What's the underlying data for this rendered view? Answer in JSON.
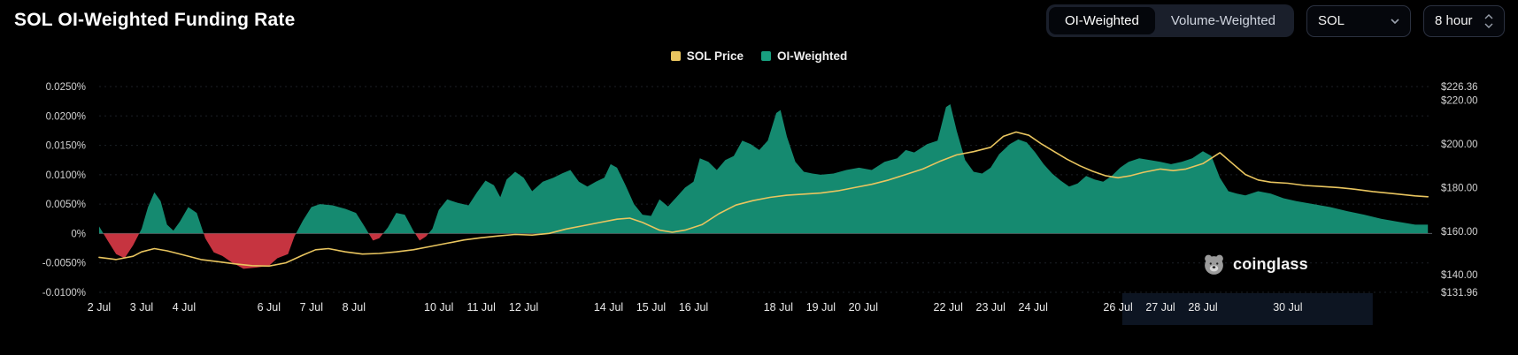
{
  "header": {
    "title": "SOL OI-Weighted Funding Rate",
    "toggle_options": [
      "OI-Weighted",
      "Volume-Weighted"
    ],
    "active_toggle": "OI-Weighted",
    "symbol": "SOL",
    "interval": "8 hour"
  },
  "watermark": {
    "label": "coinglass"
  },
  "chart_data": {
    "type": "area",
    "title": "SOL OI-Weighted Funding Rate",
    "legend": [
      {
        "label": "SOL Price",
        "color": "#e9c55f"
      },
      {
        "label": "OI-Weighted",
        "color": "#18a07f"
      }
    ],
    "x_axis": {
      "min_day": 0,
      "max_day": 31.4,
      "tick_days": [
        0,
        1,
        2,
        4,
        5,
        6,
        8,
        9,
        10,
        12,
        13,
        14,
        16,
        17,
        18,
        20,
        21,
        22,
        24,
        25,
        26,
        28
      ],
      "tick_labels": [
        "2 Jul",
        "3 Jul",
        "4 Jul",
        "6 Jul",
        "7 Jul",
        "8 Jul",
        "10 Jul",
        "11 Jul",
        "12 Jul",
        "14 Jul",
        "15 Jul",
        "16 Jul",
        "18 Jul",
        "19 Jul",
        "20 Jul",
        "22 Jul",
        "23 Jul",
        "24 Jul",
        "26 Jul",
        "27 Jul",
        "28 Jul",
        "30 Jul"
      ]
    },
    "left_axis": {
      "min": -0.01,
      "max": 0.025,
      "tick_values": [
        0.025,
        0.02,
        0.015,
        0.01,
        0.005,
        0,
        -0.005,
        -0.01
      ],
      "tick_labels": [
        "0.0250%",
        "0.0200%",
        "0.0150%",
        "0.0100%",
        "0.0050%",
        "0%",
        "-0.0050%",
        "-0.0100%"
      ]
    },
    "right_axis": {
      "min": 131.96,
      "max": 226.36,
      "tick_values": [
        226.36,
        220,
        200,
        180,
        160,
        140,
        131.96
      ],
      "tick_labels": [
        "$226.36",
        "$220.00",
        "$200.00",
        "$180.00",
        "$160.00",
        "$140.00",
        "$131.96"
      ]
    },
    "highlight_band": {
      "from_day": 24.1,
      "to_day": 30.0,
      "color": "#0d1522"
    },
    "grid": {
      "line_color": "#1c2026",
      "zero_line_color": "#565b63"
    },
    "series": [
      {
        "name": "OI-Weighted",
        "kind": "area",
        "axis": "left",
        "unit": "%",
        "positive_color": "#158a70",
        "negative_color": "#c63440",
        "points": [
          [
            0,
            0.0012
          ],
          [
            0.2,
            -0.0012
          ],
          [
            0.4,
            -0.0035
          ],
          [
            0.6,
            -0.0042
          ],
          [
            0.8,
            -0.002
          ],
          [
            1,
            0.0008
          ],
          [
            1.15,
            0.0045
          ],
          [
            1.3,
            0.007
          ],
          [
            1.45,
            0.0055
          ],
          [
            1.6,
            0.0015
          ],
          [
            1.75,
            0.0005
          ],
          [
            1.9,
            0.002
          ],
          [
            2.1,
            0.0045
          ],
          [
            2.3,
            0.0035
          ],
          [
            2.5,
            -0.0008
          ],
          [
            2.7,
            -0.0032
          ],
          [
            2.9,
            -0.0038
          ],
          [
            3.1,
            -0.0048
          ],
          [
            3.4,
            -0.006
          ],
          [
            3.7,
            -0.0058
          ],
          [
            4,
            -0.0055
          ],
          [
            4.2,
            -0.0042
          ],
          [
            4.45,
            -0.0035
          ],
          [
            4.6,
            -0.0005
          ],
          [
            4.8,
            0.0022
          ],
          [
            5,
            0.0045
          ],
          [
            5.2,
            0.005
          ],
          [
            5.5,
            0.0048
          ],
          [
            5.8,
            0.0042
          ],
          [
            6.05,
            0.0035
          ],
          [
            6.25,
            0.0012
          ],
          [
            6.45,
            -0.0012
          ],
          [
            6.6,
            -0.0008
          ],
          [
            6.8,
            0.001
          ],
          [
            7,
            0.0035
          ],
          [
            7.2,
            0.0032
          ],
          [
            7.4,
            0.0005
          ],
          [
            7.55,
            -0.0012
          ],
          [
            7.7,
            -0.0005
          ],
          [
            7.85,
            0.0008
          ],
          [
            8,
            0.004
          ],
          [
            8.2,
            0.0058
          ],
          [
            8.45,
            0.0052
          ],
          [
            8.7,
            0.0048
          ],
          [
            8.9,
            0.007
          ],
          [
            9.1,
            0.009
          ],
          [
            9.3,
            0.0082
          ],
          [
            9.45,
            0.0062
          ],
          [
            9.6,
            0.0092
          ],
          [
            9.8,
            0.0105
          ],
          [
            10,
            0.0095
          ],
          [
            10.2,
            0.0072
          ],
          [
            10.45,
            0.0088
          ],
          [
            10.7,
            0.0095
          ],
          [
            10.9,
            0.0102
          ],
          [
            11.1,
            0.0108
          ],
          [
            11.3,
            0.0088
          ],
          [
            11.5,
            0.008
          ],
          [
            11.7,
            0.0088
          ],
          [
            11.9,
            0.0095
          ],
          [
            12.05,
            0.0118
          ],
          [
            12.2,
            0.0112
          ],
          [
            12.4,
            0.0082
          ],
          [
            12.6,
            0.005
          ],
          [
            12.8,
            0.0032
          ],
          [
            13,
            0.003
          ],
          [
            13.2,
            0.0058
          ],
          [
            13.4,
            0.0046
          ],
          [
            13.6,
            0.0062
          ],
          [
            13.8,
            0.0078
          ],
          [
            14,
            0.0088
          ],
          [
            14.15,
            0.0128
          ],
          [
            14.35,
            0.0122
          ],
          [
            14.55,
            0.0108
          ],
          [
            14.75,
            0.0125
          ],
          [
            14.95,
            0.0132
          ],
          [
            15.15,
            0.0158
          ],
          [
            15.35,
            0.0152
          ],
          [
            15.55,
            0.0142
          ],
          [
            15.75,
            0.0158
          ],
          [
            15.95,
            0.0205
          ],
          [
            16.05,
            0.021
          ],
          [
            16.2,
            0.0165
          ],
          [
            16.4,
            0.0122
          ],
          [
            16.6,
            0.0105
          ],
          [
            16.8,
            0.0102
          ],
          [
            17,
            0.01
          ],
          [
            17.3,
            0.0102
          ],
          [
            17.6,
            0.0108
          ],
          [
            17.9,
            0.0112
          ],
          [
            18.2,
            0.0108
          ],
          [
            18.5,
            0.0122
          ],
          [
            18.8,
            0.0128
          ],
          [
            19,
            0.0142
          ],
          [
            19.2,
            0.0138
          ],
          [
            19.5,
            0.0152
          ],
          [
            19.75,
            0.0158
          ],
          [
            19.95,
            0.0215
          ],
          [
            20.05,
            0.022
          ],
          [
            20.2,
            0.0175
          ],
          [
            20.4,
            0.0125
          ],
          [
            20.6,
            0.0105
          ],
          [
            20.8,
            0.0102
          ],
          [
            21,
            0.0112
          ],
          [
            21.2,
            0.0135
          ],
          [
            21.45,
            0.0152
          ],
          [
            21.65,
            0.016
          ],
          [
            21.85,
            0.0155
          ],
          [
            22.05,
            0.0138
          ],
          [
            22.25,
            0.0118
          ],
          [
            22.45,
            0.0102
          ],
          [
            22.65,
            0.009
          ],
          [
            22.85,
            0.008
          ],
          [
            23.05,
            0.0085
          ],
          [
            23.25,
            0.0098
          ],
          [
            23.45,
            0.0092
          ],
          [
            23.65,
            0.0088
          ],
          [
            23.85,
            0.0098
          ],
          [
            24.05,
            0.0112
          ],
          [
            24.25,
            0.0122
          ],
          [
            24.5,
            0.0128
          ],
          [
            24.75,
            0.0125
          ],
          [
            25,
            0.0122
          ],
          [
            25.25,
            0.0118
          ],
          [
            25.5,
            0.0122
          ],
          [
            25.75,
            0.0128
          ],
          [
            26,
            0.014
          ],
          [
            26.2,
            0.0132
          ],
          [
            26.4,
            0.0095
          ],
          [
            26.6,
            0.0072
          ],
          [
            26.8,
            0.0068
          ],
          [
            27,
            0.0065
          ],
          [
            27.3,
            0.0072
          ],
          [
            27.6,
            0.0068
          ],
          [
            27.9,
            0.006
          ],
          [
            28.2,
            0.0055
          ],
          [
            28.6,
            0.005
          ],
          [
            29,
            0.0045
          ],
          [
            29.4,
            0.0038
          ],
          [
            29.8,
            0.0032
          ],
          [
            30.2,
            0.0025
          ],
          [
            30.6,
            0.002
          ],
          [
            31,
            0.0015
          ],
          [
            31.3,
            0.0015
          ]
        ]
      },
      {
        "name": "SOL Price",
        "kind": "line",
        "axis": "right",
        "unit": "USD",
        "color": "#e9c55f",
        "points": [
          [
            0,
            148
          ],
          [
            0.4,
            147
          ],
          [
            0.8,
            148.5
          ],
          [
            1,
            150.5
          ],
          [
            1.3,
            152
          ],
          [
            1.6,
            151
          ],
          [
            2,
            149
          ],
          [
            2.4,
            147
          ],
          [
            2.8,
            146
          ],
          [
            3.2,
            145
          ],
          [
            3.6,
            144.2
          ],
          [
            4,
            144
          ],
          [
            4.4,
            145.5
          ],
          [
            4.8,
            149
          ],
          [
            5.1,
            151.5
          ],
          [
            5.4,
            152
          ],
          [
            5.8,
            150.5
          ],
          [
            6.2,
            149.5
          ],
          [
            6.6,
            149.8
          ],
          [
            7,
            150.5
          ],
          [
            7.4,
            151.5
          ],
          [
            7.8,
            153
          ],
          [
            8.2,
            154.5
          ],
          [
            8.6,
            156
          ],
          [
            9,
            157
          ],
          [
            9.4,
            157.8
          ],
          [
            9.8,
            158.5
          ],
          [
            10.2,
            158.2
          ],
          [
            10.6,
            159
          ],
          [
            11,
            161
          ],
          [
            11.4,
            162.5
          ],
          [
            11.8,
            164
          ],
          [
            12.2,
            165.5
          ],
          [
            12.5,
            166
          ],
          [
            12.8,
            164
          ],
          [
            13.2,
            160.5
          ],
          [
            13.5,
            159.5
          ],
          [
            13.8,
            160.5
          ],
          [
            14.2,
            163
          ],
          [
            14.6,
            168
          ],
          [
            15,
            172
          ],
          [
            15.4,
            174
          ],
          [
            15.8,
            175.5
          ],
          [
            16.2,
            176.5
          ],
          [
            16.6,
            177
          ],
          [
            17,
            177.5
          ],
          [
            17.4,
            178.5
          ],
          [
            17.8,
            180
          ],
          [
            18.2,
            181.5
          ],
          [
            18.6,
            183.5
          ],
          [
            19,
            186
          ],
          [
            19.4,
            188.5
          ],
          [
            19.8,
            192
          ],
          [
            20.2,
            195
          ],
          [
            20.6,
            196.5
          ],
          [
            21,
            198.5
          ],
          [
            21.3,
            203.5
          ],
          [
            21.6,
            205.5
          ],
          [
            21.9,
            204
          ],
          [
            22.2,
            200
          ],
          [
            22.5,
            196.5
          ],
          [
            22.8,
            193
          ],
          [
            23.1,
            190
          ],
          [
            23.4,
            187.5
          ],
          [
            23.7,
            185.5
          ],
          [
            24,
            184.5
          ],
          [
            24.3,
            185.5
          ],
          [
            24.6,
            187
          ],
          [
            25,
            188.5
          ],
          [
            25.3,
            187.8
          ],
          [
            25.6,
            188.5
          ],
          [
            26,
            191
          ],
          [
            26.4,
            196
          ],
          [
            26.7,
            191
          ],
          [
            27,
            186
          ],
          [
            27.3,
            183.5
          ],
          [
            27.6,
            182.5
          ],
          [
            28,
            182
          ],
          [
            28.4,
            181
          ],
          [
            28.8,
            180.5
          ],
          [
            29.2,
            180
          ],
          [
            29.6,
            179.2
          ],
          [
            30,
            178.2
          ],
          [
            30.5,
            177.2
          ],
          [
            31,
            176.2
          ],
          [
            31.3,
            175.8
          ]
        ]
      }
    ]
  }
}
